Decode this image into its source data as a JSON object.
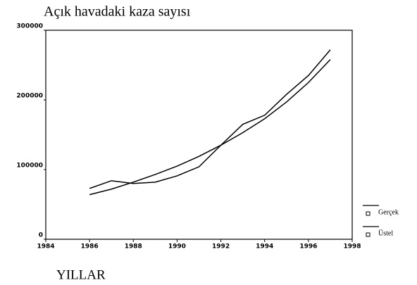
{
  "chart_data": {
    "type": "line",
    "title": "Açık havadaki kaza sayısı",
    "xlabel": "YILLAR",
    "x": [
      1986,
      1987,
      1988,
      1989,
      1990,
      1991,
      1992,
      1993,
      1994,
      1995,
      1996,
      1997
    ],
    "series": [
      {
        "name": "Gerçek",
        "color": "#000000",
        "values": [
          73000,
          84000,
          80000,
          82000,
          91000,
          104000,
          135000,
          165000,
          178000,
          208000,
          235000,
          272000
        ]
      },
      {
        "name": "Üstel",
        "color": "#000000",
        "values": [
          64000,
          72000,
          82000,
          93000,
          105000,
          119000,
          135000,
          153000,
          173000,
          197000,
          225000,
          258000
        ]
      }
    ],
    "xlim": [
      1984,
      1998
    ],
    "xticks": [
      1984,
      1986,
      1988,
      1990,
      1992,
      1994,
      1996,
      1998
    ],
    "ylim": [
      0,
      300000
    ],
    "yticks": [
      0,
      100000,
      200000,
      300000
    ],
    "grid": false,
    "legend": "right"
  }
}
